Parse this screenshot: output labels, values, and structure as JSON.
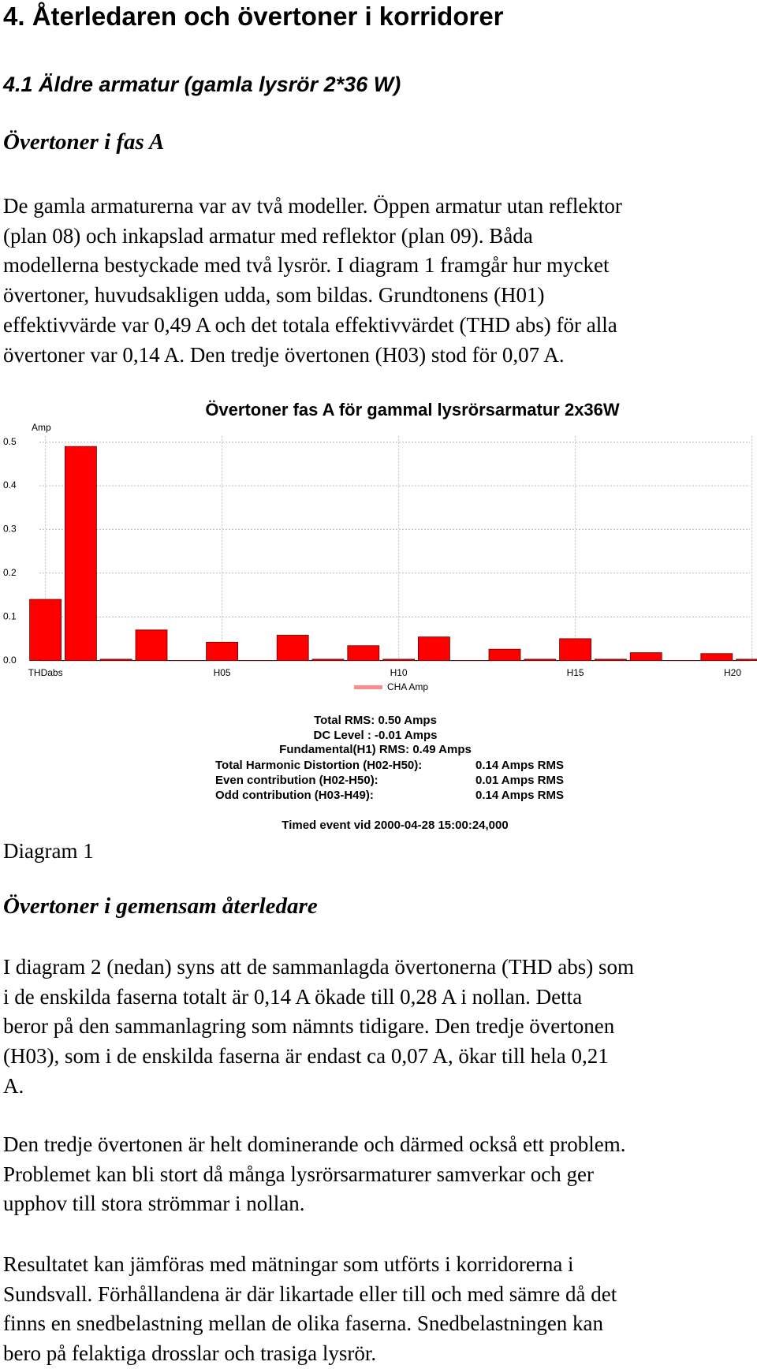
{
  "heading": "4. Återledaren och övertoner i korridorer",
  "subheading": "4.1 Äldre armatur (gamla lysrör 2*36 W)",
  "section_a": {
    "title": "Övertoner i fas A",
    "paragraph": [
      "De gamla armaturerna var av två modeller. Öppen armatur utan reflektor",
      "(plan 08) och inkapslad armatur med reflektor (plan 09). Båda",
      "modellerna bestyckade med två lysrör. I diagram 1 framgår hur mycket",
      "övertoner, huvudsakligen udda, som bildas. Grundtonens (H01)",
      "effektivvärde var 0,49 A och det totala effektivvärdet (THD abs) för alla",
      "övertoner var 0,14 A. Den tredje övertonen (H03) stod för 0,07 A."
    ]
  },
  "chart_data": {
    "type": "bar",
    "title": "Övertoner fas A för gammal lysrörsarmatur 2x36W",
    "y_label": "Amp",
    "categories": [
      "THDabs",
      null,
      null,
      null,
      null,
      "H05",
      null,
      null,
      null,
      null,
      "H10",
      null,
      null,
      null,
      null,
      "H15",
      null,
      null,
      null,
      null,
      "H20"
    ],
    "series": [
      {
        "name": "CHA Amp",
        "color": "#ff0000",
        "values": [
          0.14,
          0.49,
          0.003,
          0.07,
          0,
          0.042,
          0,
          0.058,
          0.003,
          0.034,
          0.003,
          0.054,
          0,
          0.026,
          0.003,
          0.05,
          0.003,
          0.018,
          0,
          0.016,
          0.003
        ]
      }
    ],
    "ylim": [
      0,
      0.5
    ],
    "yticks": [
      {
        "value": 0,
        "label": "0.0"
      },
      0.1,
      0.2,
      0.3,
      0.4,
      0.5
    ],
    "grid": true,
    "stats_lines": [
      "Total RMS: 0.50 Amps",
      "DC Level : -0.01 Amps",
      "Fundamental(H1) RMS: 0.49 Amps"
    ],
    "stats_table": [
      [
        "Total Harmonic Distortion (H02-H50):",
        "0.14 Amps RMS"
      ],
      [
        "Even contribution (H02-H50):",
        "0.01 Amps RMS"
      ],
      [
        "Odd  contribution (H03-H49):",
        "0.14 Amps RMS"
      ]
    ],
    "event": "Timed event vid 2000-04-28 15:00:24,000"
  },
  "caption": "Diagram 1",
  "section_n": {
    "title": "Övertoner i gemensam återledare",
    "paragraphs": [
      [
        "I diagram 2 (nedan) syns att de sammanlagda övertonerna (THD abs) som",
        "i de enskilda faserna totalt är 0,14 A ökade till 0,28 A i nollan. Detta",
        "beror på den sammanlagring som nämnts tidigare. Den tredje övertonen",
        "(H03), som i de enskilda faserna är endast ca 0,07 A, ökar till hela 0,21",
        "A."
      ],
      [
        "Den tredje övertonen är helt dominerande och därmed också ett problem.",
        "Problemet kan bli stort då många lysrörsarmaturer samverkar och ger",
        "upphov till stora strömmar i nollan."
      ],
      [
        "Resultatet kan jämföras med mätningar som utförts i korridorerna i",
        "Sundsvall. Förhållandena är där likartade eller till och med sämre då det",
        "finns en snedbelastning mellan de olika faserna. Snedbelastningen kan",
        "bero på felaktiga drosslar och trasiga lysrör."
      ]
    ]
  }
}
